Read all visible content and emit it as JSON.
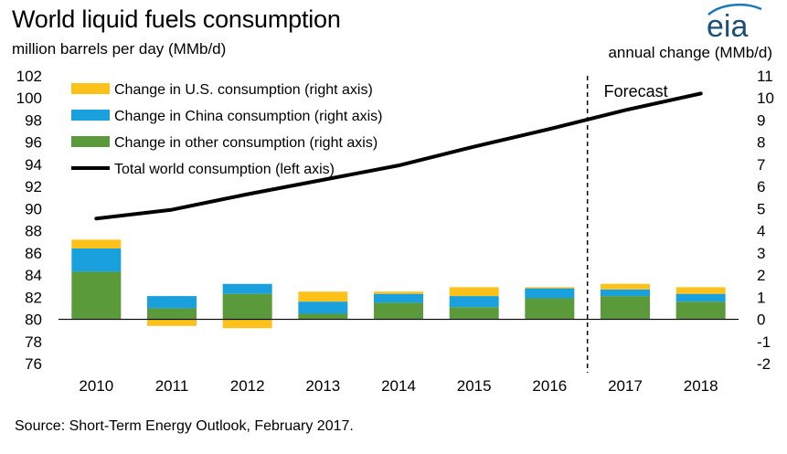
{
  "header": {
    "title": "World liquid fuels consumption",
    "left_axis_unit": "million barrels per day (MMb/d)",
    "right_axis_unit": "annual  change  (MMb/d)",
    "logo_text": "eia"
  },
  "footer": {
    "source": "Source: Short-Term Energy Outlook, February 2017."
  },
  "chart_data": {
    "type": "bar",
    "categories": [
      "2010",
      "2011",
      "2012",
      "2013",
      "2014",
      "2015",
      "2016",
      "2017",
      "2018"
    ],
    "forecast_label": "Forecast",
    "forecast_start_after": "2016",
    "left_axis": {
      "ylim": [
        76,
        102
      ],
      "ticks": [
        76,
        78,
        80,
        82,
        84,
        86,
        88,
        90,
        92,
        94,
        96,
        98,
        100,
        102
      ]
    },
    "right_axis": {
      "ylim": [
        -2,
        11
      ],
      "ticks": [
        -2,
        -1,
        0,
        1,
        2,
        3,
        4,
        5,
        6,
        7,
        8,
        9,
        10,
        11
      ]
    },
    "series": [
      {
        "name": "Change in other consumption (right axis)",
        "type": "stacked-bar",
        "axis": "right",
        "color": "#5a9a3a",
        "values": [
          2.15,
          0.5,
          1.15,
          0.25,
          0.75,
          0.55,
          0.95,
          1.05,
          0.8
        ]
      },
      {
        "name": "Change in China consumption (right axis)",
        "type": "stacked-bar",
        "axis": "right",
        "color": "#1aa0dc",
        "values": [
          1.05,
          0.55,
          0.45,
          0.55,
          0.4,
          0.5,
          0.45,
          0.3,
          0.35
        ]
      },
      {
        "name": "Change in U.S. consumption (right axis)",
        "type": "stacked-bar",
        "axis": "right",
        "color": "#fcc21b",
        "values": [
          0.4,
          -0.3,
          -0.4,
          0.45,
          0.1,
          0.4,
          0.05,
          0.25,
          0.3
        ]
      },
      {
        "name": "Total world consumption (left axis)",
        "type": "line",
        "axis": "left",
        "color": "#000000",
        "values": [
          89.1,
          89.9,
          91.3,
          92.6,
          93.9,
          95.6,
          97.2,
          98.9,
          100.4
        ]
      }
    ],
    "legend_position": "top-left",
    "grid": false
  }
}
